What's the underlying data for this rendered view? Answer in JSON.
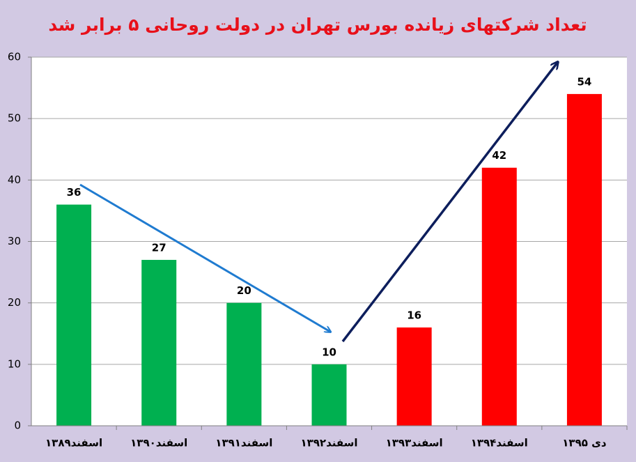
{
  "chart_data": {
    "type": "bar",
    "title": "تعداد شرکتهای زیانده بورس تهران در دولت روحانی ۵ برابر شد",
    "categories": [
      "اسفند۱۳۸۹",
      "اسفند۱۳۹۰",
      "اسفند۱۳۹۱",
      "اسفند۱۳۹۲",
      "اسفند۱۳۹۳",
      "اسفند۱۳۹۴",
      "دی ۱۳۹۵"
    ],
    "values": [
      36,
      27,
      20,
      10,
      16,
      42,
      54
    ],
    "colors": [
      "#00b050",
      "#00b050",
      "#00b050",
      "#00b050",
      "#ff0000",
      "#ff0000",
      "#ff0000"
    ],
    "ylim": [
      0,
      60
    ],
    "yticks": [
      0,
      10,
      20,
      30,
      40,
      50,
      60
    ],
    "grid": true
  }
}
